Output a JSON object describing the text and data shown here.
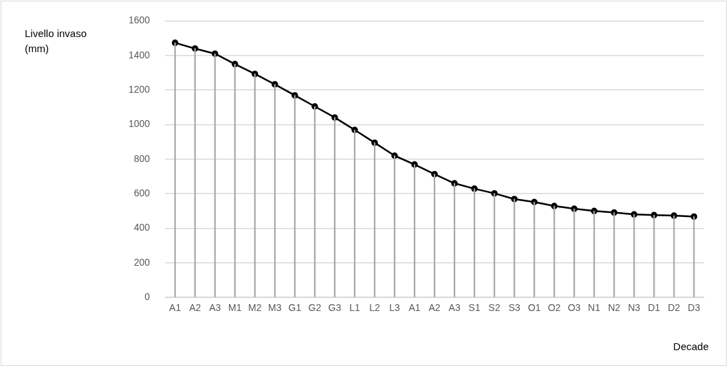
{
  "chart_data": {
    "type": "line",
    "xlabel": "Decade",
    "ylabel": "Livello invaso (mm)",
    "categories": [
      "A1",
      "A2",
      "A3",
      "M1",
      "M2",
      "M3",
      "G1",
      "G2",
      "G3",
      "L1",
      "L2",
      "L3",
      "A1",
      "A2",
      "A3",
      "S1",
      "S2",
      "S3",
      "O1",
      "O2",
      "O3",
      "N1",
      "N2",
      "N3",
      "D1",
      "D2",
      "D3"
    ],
    "series": [
      {
        "type": "bar",
        "color": "#a6a6a6",
        "values": [
          1473,
          1440,
          1410,
          1350,
          1293,
          1233,
          1169,
          1105,
          1041,
          969,
          895,
          820,
          769,
          713,
          660,
          629,
          602,
          569,
          552,
          529,
          513,
          500,
          491,
          480,
          476,
          473,
          468
        ]
      },
      {
        "color": "#000000",
        "values": [
          1473,
          1440,
          1410,
          1350,
          1293,
          1233,
          1169,
          1105,
          1041,
          969,
          895,
          820,
          769,
          713,
          660,
          629,
          602,
          569,
          552,
          529,
          513,
          500,
          491,
          480,
          476,
          473,
          468
        ]
      }
    ],
    "ylim": [
      0,
      1600
    ],
    "yticks": [
      0,
      200,
      400,
      600,
      800,
      1000,
      1200,
      1400,
      1600
    ],
    "grid": "y",
    "legend": false,
    "marker": "circle",
    "line_style": "solid"
  }
}
